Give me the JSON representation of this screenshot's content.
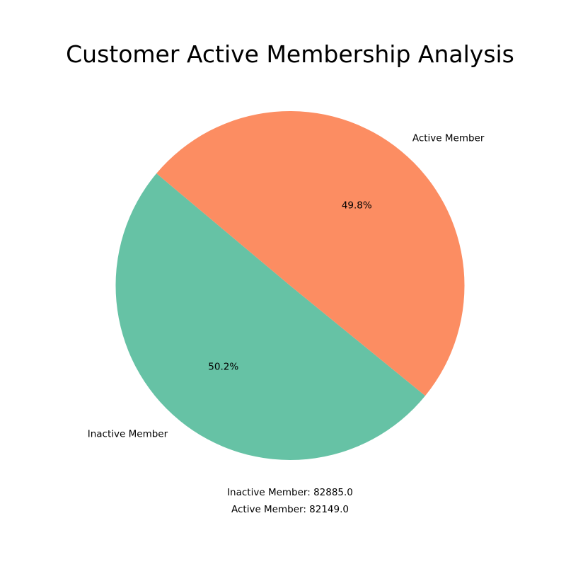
{
  "chart_data": {
    "type": "pie",
    "title": "Customer Active Membership Analysis",
    "slices": [
      {
        "label": "Inactive Member",
        "value": 82885.0,
        "percent_label": "50.2%",
        "color": "#66c2a5"
      },
      {
        "label": "Active Member",
        "value": 82149.0,
        "percent_label": "49.8%",
        "color": "#fc8d62"
      }
    ],
    "start_angle_deg": 140,
    "direction": "counterclockwise",
    "annotations": [
      "Inactive Member: 82885.0",
      "Active Member: 82149.0"
    ]
  }
}
